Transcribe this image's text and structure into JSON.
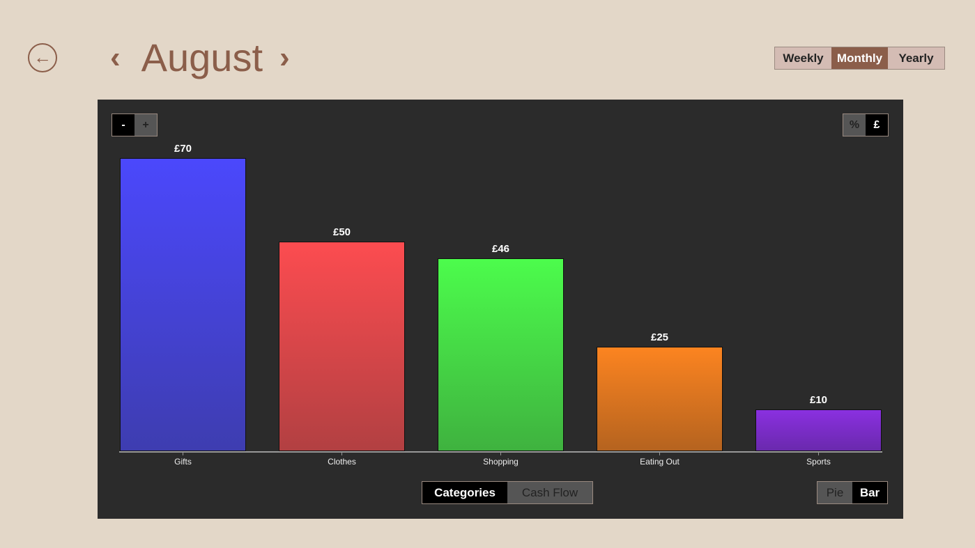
{
  "header": {
    "title": "August",
    "back_icon": "arrow-left-circle-icon",
    "prev_icon": "chevron-left-icon",
    "next_icon": "chevron-right-icon"
  },
  "period": {
    "options": [
      "Weekly",
      "Monthly",
      "Yearly"
    ],
    "selected": "Monthly"
  },
  "zoom": {
    "minus": "-",
    "plus": "+"
  },
  "units": {
    "options": [
      "%",
      "£"
    ],
    "selected": "£"
  },
  "view": {
    "options": [
      "Categories",
      "Cash Flow"
    ],
    "selected": "Categories"
  },
  "chart_type": {
    "options": [
      "Pie",
      "Bar"
    ],
    "selected": "Bar"
  },
  "chart_data": {
    "type": "bar",
    "categories": [
      "Gifts",
      "Clothes",
      "Shopping",
      "Eating Out",
      "Sports"
    ],
    "values": [
      70,
      50,
      46,
      25,
      10
    ],
    "labels": [
      "£70",
      "£50",
      "£46",
      "£25",
      "£10"
    ],
    "colors": [
      [
        "#4b48fc",
        "#3e3db0"
      ],
      [
        "#fc4c50",
        "#b24042"
      ],
      [
        "#4cfc4c",
        "#3fb23f"
      ],
      [
        "#fc8420",
        "#b5631f"
      ],
      [
        "#8a30e0",
        "#6a29ad"
      ]
    ],
    "ylim": [
      0,
      70
    ]
  }
}
